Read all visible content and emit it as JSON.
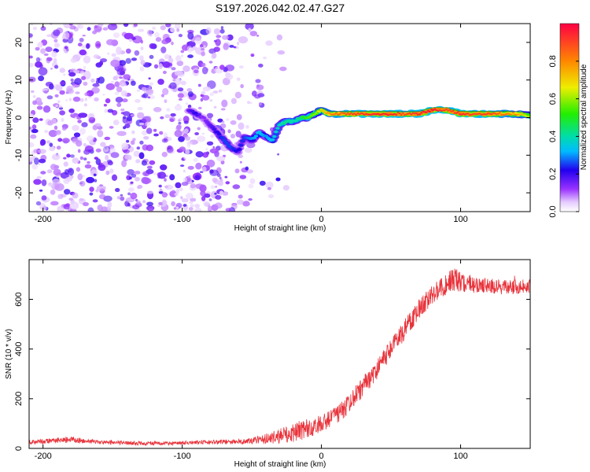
{
  "title": "S197.2026.042.02.47.G27",
  "colors": {
    "snr_line": "#e8323a",
    "background": "#ffffff",
    "axis": "#000000"
  },
  "chart_data": [
    {
      "type": "heatmap",
      "name": "spectrogram",
      "xlabel": "Height of straight line (km)",
      "ylabel": "Frequency (Hz)",
      "xlim": [
        -210,
        150
      ],
      "ylim": [
        -25,
        25
      ],
      "xticks": [
        -200,
        -100,
        0,
        100
      ],
      "yticks": [
        -20,
        -10,
        0,
        10,
        20
      ],
      "colorbar": {
        "label": "Normalized spectral amplitude",
        "range": [
          0,
          1
        ],
        "ticks": [
          0.0,
          0.2,
          0.4,
          0.6,
          0.8
        ],
        "tick_labels": [
          "0.0",
          "0.2",
          "0.4",
          "0.6",
          "0.8"
        ]
      },
      "noise_region_x": [
        -210,
        -45
      ],
      "ridge": {
        "x": [
          -95,
          -90,
          -85,
          -80,
          -75,
          -70,
          -65,
          -60,
          -55,
          -50,
          -45,
          -40,
          -35,
          -30,
          -25,
          -20,
          -15,
          -10,
          -5,
          0,
          5,
          10,
          20,
          30,
          40,
          50,
          60,
          70,
          80,
          90,
          100,
          110,
          120,
          130,
          140,
          150
        ],
        "frequency": [
          2,
          1,
          0,
          -2,
          -4,
          -6,
          -8,
          -9,
          -5,
          -6,
          -4,
          -5,
          -6,
          -2,
          -1,
          -1,
          0,
          0,
          1,
          2,
          1,
          1,
          1,
          1,
          1,
          1,
          1,
          1,
          2,
          2,
          1,
          1,
          1,
          1,
          1,
          0.5
        ],
        "amplitude": [
          0.2,
          0.25,
          0.15,
          0.2,
          0.25,
          0.3,
          0.3,
          0.25,
          0.3,
          0.35,
          0.4,
          0.35,
          0.4,
          0.45,
          0.5,
          0.45,
          0.5,
          0.55,
          0.6,
          0.7,
          0.8,
          0.85,
          0.9,
          0.92,
          0.95,
          0.95,
          0.9,
          0.95,
          0.98,
          0.9,
          0.95,
          0.9,
          0.92,
          0.85,
          0.8,
          0.6
        ]
      }
    },
    {
      "type": "line",
      "name": "snr",
      "xlabel": "Height of straight line (km)",
      "ylabel": "SNR (10 * v/v)",
      "xlim": [
        -210,
        150
      ],
      "ylim": [
        0,
        760
      ],
      "xticks": [
        -200,
        -100,
        0,
        100
      ],
      "yticks": [
        0,
        200,
        400,
        600
      ],
      "series": [
        {
          "name": "SNR",
          "trend_x": [
            -210,
            -200,
            -180,
            -160,
            -140,
            -120,
            -100,
            -80,
            -60,
            -50,
            -40,
            -30,
            -20,
            -10,
            0,
            10,
            20,
            30,
            40,
            50,
            60,
            70,
            80,
            90,
            95,
            100,
            110,
            120,
            130,
            140,
            150
          ],
          "trend_y": [
            25,
            28,
            35,
            25,
            22,
            20,
            22,
            25,
            28,
            30,
            40,
            50,
            65,
            80,
            100,
            130,
            180,
            250,
            320,
            400,
            480,
            560,
            620,
            660,
            680,
            670,
            660,
            655,
            650,
            650,
            655
          ],
          "noise_amplitude_y": [
            8,
            10,
            12,
            8,
            8,
            8,
            8,
            8,
            10,
            12,
            20,
            30,
            40,
            40,
            35,
            35,
            40,
            40,
            40,
            40,
            40,
            40,
            40,
            40,
            50,
            40,
            35,
            30,
            30,
            30,
            30
          ]
        }
      ]
    }
  ]
}
